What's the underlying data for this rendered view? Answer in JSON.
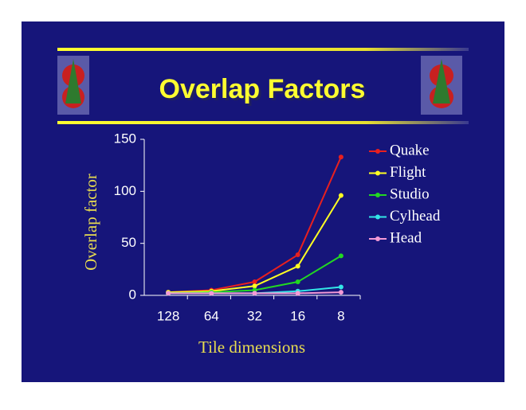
{
  "chart_data": {
    "type": "line",
    "title": "Overlap Factors",
    "x_label": "Tile dimensions",
    "y_label": "Overlap factor",
    "categories": [
      "128",
      "64",
      "32",
      "16",
      "8"
    ],
    "series": [
      {
        "name": "Quake",
        "color": "#e8201f",
        "values": [
          3,
          5,
          13,
          39,
          133
        ]
      },
      {
        "name": "Flight",
        "color": "#ffff22",
        "values": [
          3,
          4,
          9,
          28,
          96
        ]
      },
      {
        "name": "Studio",
        "color": "#22d822",
        "values": [
          2,
          3,
          5,
          13,
          38
        ]
      },
      {
        "name": "Cylhead",
        "color": "#33e6e6",
        "values": [
          2,
          2,
          2,
          4,
          8
        ]
      },
      {
        "name": "Head",
        "color": "#f39ad6",
        "values": [
          2,
          2,
          2,
          2,
          3
        ]
      }
    ],
    "ylim": [
      0,
      150
    ],
    "yticks": [
      0,
      50,
      100,
      150
    ],
    "legend": "right"
  }
}
